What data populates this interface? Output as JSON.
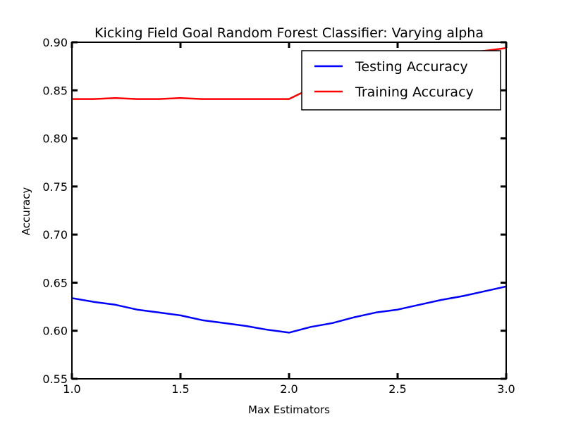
{
  "chart_data": {
    "type": "line",
    "title": "Kicking Field Goal Random Forest Classifier: Varying alpha",
    "xlabel": "Max Estimators",
    "ylabel": "Accuracy",
    "xlim": [
      1.0,
      3.0
    ],
    "ylim": [
      0.55,
      0.9
    ],
    "xticks": [
      "1.0",
      "1.5",
      "2.0",
      "2.5",
      "3.0"
    ],
    "yticks": [
      "0.55",
      "0.60",
      "0.65",
      "0.70",
      "0.75",
      "0.80",
      "0.85",
      "0.90"
    ],
    "grid": false,
    "legend_position": "top-right",
    "series": [
      {
        "name": "Testing Accuracy",
        "color": "#0000ff",
        "x": [
          1.0,
          1.1,
          1.2,
          1.3,
          1.4,
          1.5,
          1.6,
          1.7,
          1.8,
          1.9,
          2.0,
          2.1,
          2.2,
          2.3,
          2.4,
          2.5,
          2.6,
          2.7,
          2.8,
          2.9,
          3.0
        ],
        "y": [
          0.634,
          0.63,
          0.627,
          0.622,
          0.619,
          0.616,
          0.611,
          0.608,
          0.605,
          0.601,
          0.598,
          0.604,
          0.608,
          0.614,
          0.619,
          0.622,
          0.627,
          0.632,
          0.636,
          0.641,
          0.646
        ]
      },
      {
        "name": "Training Accuracy",
        "color": "#ff0000",
        "x": [
          1.0,
          1.1,
          1.2,
          1.3,
          1.4,
          1.5,
          1.6,
          1.7,
          1.8,
          1.9,
          2.0,
          2.1,
          2.2,
          2.3,
          2.4,
          2.5,
          2.6,
          2.7,
          2.8,
          2.9,
          3.0
        ],
        "y": [
          0.841,
          0.841,
          0.842,
          0.841,
          0.841,
          0.842,
          0.841,
          0.841,
          0.841,
          0.841,
          0.841,
          0.852,
          0.86,
          0.866,
          0.872,
          0.877,
          0.881,
          0.885,
          0.889,
          0.891,
          0.894
        ]
      }
    ]
  }
}
